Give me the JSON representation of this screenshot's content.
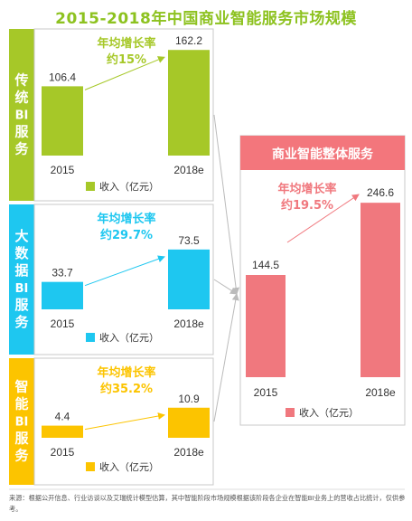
{
  "title": "2015-2018年中国商业智能服务市场规模",
  "colors": {
    "traditional": "#a6c828",
    "bigdata": "#1ec7f0",
    "smart": "#fcc400",
    "overall": "#f0787e",
    "overall_header": "#f3767c",
    "border": "#c8c8c8",
    "text": "#333333"
  },
  "source_note": "来源：根据公开信息、行业访谈以及艾瑞统计模型估算，其中智能阶段市场规模根据该阶段各企业在智能BI业务上的营收占比统计，仅供参考。",
  "chart_data": [
    {
      "type": "bar",
      "label": "传统BI服务",
      "categories": [
        "2015",
        "2018e"
      ],
      "values": [
        106.4,
        162.2
      ],
      "growth_label": "年均增长率",
      "growth_value": "约15%",
      "legend": "收入（亿元）"
    },
    {
      "type": "bar",
      "label": "大数据BI服务",
      "categories": [
        "2015",
        "2018e"
      ],
      "values": [
        33.7,
        73.5
      ],
      "growth_label": "年均增长率",
      "growth_value": "约29.7%",
      "legend": "收入（亿元）"
    },
    {
      "type": "bar",
      "label": "智能BI服务",
      "categories": [
        "2015",
        "2018e"
      ],
      "values": [
        4.4,
        10.9
      ],
      "growth_label": "年均增长率",
      "growth_value": "约35.2%",
      "legend": "收入（亿元）"
    },
    {
      "type": "bar",
      "label": "商业智能整体服务",
      "categories": [
        "2015",
        "2018e"
      ],
      "values": [
        144.5,
        246.6
      ],
      "growth_label": "年均增长率",
      "growth_value": "约19.5%",
      "legend": "收入（亿元）"
    }
  ]
}
